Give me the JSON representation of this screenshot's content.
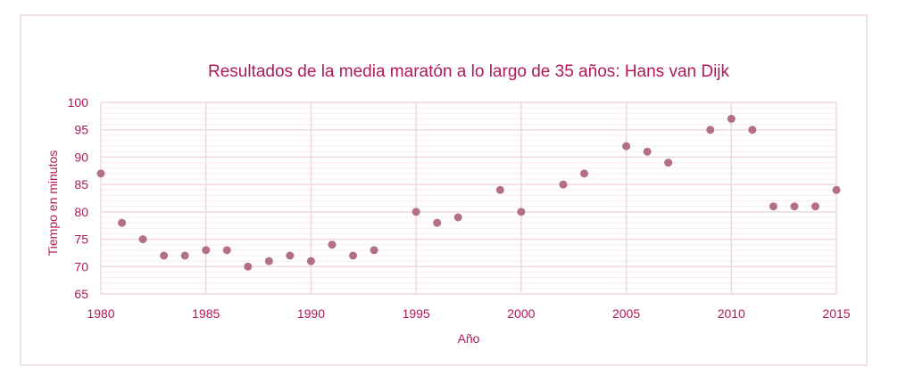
{
  "chart_data": {
    "type": "scatter",
    "title": "Resultados de la media maratón a lo largo de 35 años: Hans van Dijk",
    "xlabel": "Año",
    "ylabel": "Tiempo en minutos",
    "xlim": [
      1980,
      2015
    ],
    "ylim": [
      65,
      100
    ],
    "xticks": [
      1980,
      1985,
      1990,
      1995,
      2000,
      2005,
      2010,
      2015
    ],
    "yticks": [
      65,
      70,
      75,
      80,
      85,
      90,
      95,
      100
    ],
    "grid": true,
    "series": [
      {
        "name": "Hans van Dijk",
        "color": "#b36f87",
        "points": [
          {
            "x": 1980,
            "y": 87
          },
          {
            "x": 1981,
            "y": 78
          },
          {
            "x": 1982,
            "y": 75
          },
          {
            "x": 1983,
            "y": 72
          },
          {
            "x": 1984,
            "y": 72
          },
          {
            "x": 1985,
            "y": 73
          },
          {
            "x": 1986,
            "y": 73
          },
          {
            "x": 1987,
            "y": 70
          },
          {
            "x": 1988,
            "y": 71
          },
          {
            "x": 1989,
            "y": 72
          },
          {
            "x": 1990,
            "y": 71
          },
          {
            "x": 1991,
            "y": 74
          },
          {
            "x": 1992,
            "y": 72
          },
          {
            "x": 1993,
            "y": 73
          },
          {
            "x": 1995,
            "y": 80
          },
          {
            "x": 1996,
            "y": 78
          },
          {
            "x": 1997,
            "y": 79
          },
          {
            "x": 1999,
            "y": 84
          },
          {
            "x": 2000,
            "y": 80
          },
          {
            "x": 2002,
            "y": 85
          },
          {
            "x": 2003,
            "y": 87
          },
          {
            "x": 2005,
            "y": 92
          },
          {
            "x": 2006,
            "y": 91
          },
          {
            "x": 2007,
            "y": 89
          },
          {
            "x": 2009,
            "y": 95
          },
          {
            "x": 2010,
            "y": 97
          },
          {
            "x": 2011,
            "y": 95
          },
          {
            "x": 2012,
            "y": 81
          },
          {
            "x": 2013,
            "y": 81
          },
          {
            "x": 2014,
            "y": 81
          },
          {
            "x": 2015,
            "y": 84
          }
        ]
      }
    ]
  },
  "colors": {
    "text": "#b0185a",
    "grid_major": "#efd9e0",
    "grid_minor": "#f7ecef",
    "frame": "#efe1e6",
    "marker": "#b36f87"
  }
}
